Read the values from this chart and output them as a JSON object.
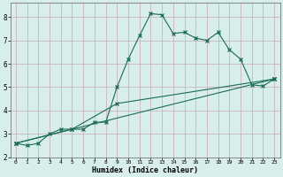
{
  "xlabel": "Humidex (Indice chaleur)",
  "ylabel": "",
  "bg_color": "#d7eeea",
  "line_color": "#1a6b5a",
  "grid_color": "#c8aab4",
  "xlim": [
    -0.5,
    23.5
  ],
  "ylim": [
    2,
    8.6
  ],
  "xticks": [
    0,
    1,
    2,
    3,
    4,
    5,
    6,
    7,
    8,
    9,
    10,
    11,
    12,
    13,
    14,
    15,
    16,
    17,
    18,
    19,
    20,
    21,
    22,
    23
  ],
  "yticks": [
    2,
    3,
    4,
    5,
    6,
    7,
    8
  ],
  "series": [
    {
      "x": [
        0,
        1,
        2,
        3,
        4,
        5,
        6,
        7,
        8,
        9,
        10,
        11,
        12,
        13,
        14,
        15,
        16,
        17,
        18,
        19,
        20,
        21,
        22,
        23
      ],
      "y": [
        2.6,
        2.5,
        2.6,
        3.0,
        3.2,
        3.2,
        3.2,
        3.5,
        3.5,
        5.0,
        6.2,
        7.2,
        8.15,
        8.1,
        7.3,
        7.35,
        7.1,
        7.0,
        7.35,
        6.6,
        6.2,
        5.1,
        5.05,
        5.35
      ]
    },
    {
      "x": [
        0,
        23
      ],
      "y": [
        2.6,
        5.35
      ]
    },
    {
      "x": [
        0,
        5,
        9,
        23
      ],
      "y": [
        2.6,
        3.2,
        4.3,
        5.35
      ]
    }
  ]
}
